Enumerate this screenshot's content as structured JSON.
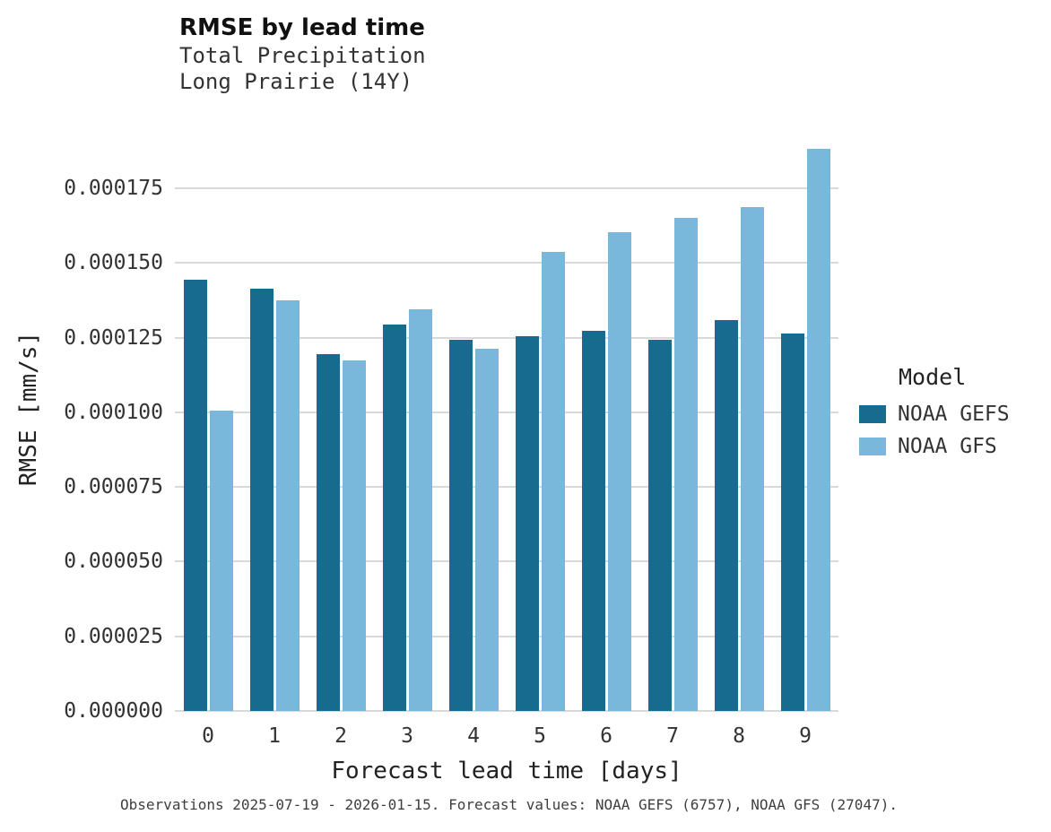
{
  "title": "RMSE by lead time",
  "subtitle1": "Total Precipitation",
  "subtitle2": "Long Prairie (14Y)",
  "caption": "Observations 2025-07-19 - 2026-01-15. Forecast values: NOAA GEFS (6757), NOAA GFS (27047).",
  "colors": {
    "gefs": "#166b8e",
    "gfs": "#79b8db",
    "gridline": "#d9d9d9"
  },
  "legend": {
    "title": "Model",
    "entries": [
      {
        "label": "NOAA GEFS",
        "color": "#166b8e"
      },
      {
        "label": "NOAA GFS",
        "color": "#79b8db"
      }
    ]
  },
  "chart_data": {
    "type": "bar",
    "title": "RMSE by lead time",
    "subtitle": "Total Precipitation Long Prairie (14Y)",
    "xlabel": "Forecast lead time [days]",
    "ylabel": "RMSE [mm/s]",
    "categories": [
      "0",
      "1",
      "2",
      "3",
      "4",
      "5",
      "6",
      "7",
      "8",
      "9"
    ],
    "series": [
      {
        "name": "NOAA GEFS",
        "color": "#166b8e",
        "values": [
          0.0001445,
          0.0001415,
          0.0001195,
          0.0001293,
          0.0001243,
          0.0001256,
          0.0001273,
          0.0001243,
          0.0001309,
          0.0001263
        ]
      },
      {
        "name": "NOAA GFS",
        "color": "#79b8db",
        "values": [
          0.0001005,
          0.0001375,
          0.0001175,
          0.0001345,
          0.0001213,
          0.0001537,
          0.0001603,
          0.000165,
          0.0001686,
          0.0001883
        ]
      }
    ],
    "ylim": [
      0,
      0.000202
    ],
    "grid": "horizontal",
    "legend_position": "right",
    "yticks": [
      {
        "value": 0.0,
        "label": "0.000000"
      },
      {
        "value": 2.5e-05,
        "label": "0.000025"
      },
      {
        "value": 5e-05,
        "label": "0.000050"
      },
      {
        "value": 7.5e-05,
        "label": "0.000075"
      },
      {
        "value": 0.0001,
        "label": "0.000100"
      },
      {
        "value": 0.000125,
        "label": "0.000125"
      },
      {
        "value": 0.00015,
        "label": "0.000150"
      },
      {
        "value": 0.000175,
        "label": "0.000175"
      }
    ]
  }
}
